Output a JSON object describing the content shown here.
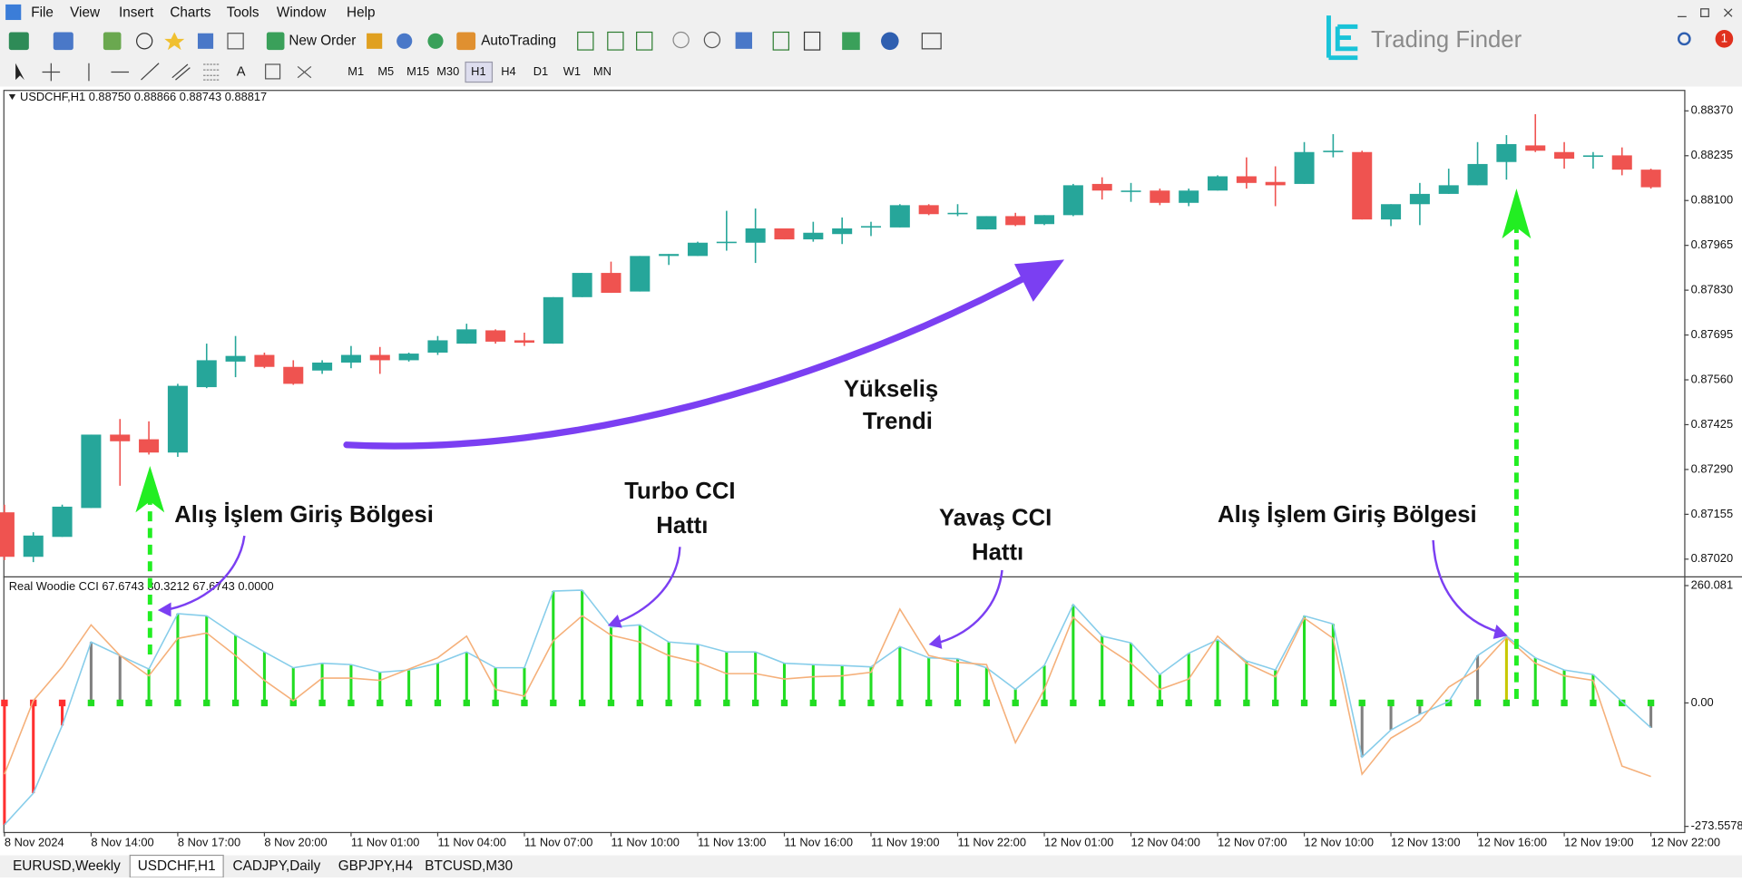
{
  "menu": [
    "File",
    "View",
    "Insert",
    "Charts",
    "Tools",
    "Window",
    "Help"
  ],
  "toolbar": {
    "new_order": "New Order",
    "autotrading": "AutoTrading",
    "timeframes": [
      "M1",
      "M5",
      "M15",
      "M30",
      "H1",
      "H4",
      "D1",
      "W1",
      "MN"
    ]
  },
  "logo": "Trading Finder",
  "notification_count": 1,
  "tabs": [
    "EURUSD,Weekly",
    "USDCHF,H1",
    "CADJPY,Daily",
    "GBPJPY,H4",
    "BTCUSD,M30"
  ],
  "annotations": [
    {
      "lines": [
        "Yükseliş",
        "Trendi"
      ]
    },
    {
      "lines": [
        "Turbo CCI",
        "Hattı"
      ]
    },
    {
      "lines": [
        "Yavaş CCI",
        "Hattı"
      ]
    },
    {
      "lines": [
        "Alış İşlem Giriş Bölgesi"
      ]
    },
    {
      "lines": [
        "Alış İşlem Giriş Bölgesi"
      ]
    }
  ],
  "chart_data": [
    {
      "type": "candlestick",
      "title": "USDCHF,H1 0.88750 0.88866 0.88743 0.88817",
      "up_color": "#26a69a",
      "down_color": "#ef5350",
      "open": [
        0.87161,
        0.87027,
        0.87087,
        0.87174,
        0.87395,
        0.87381,
        0.87341,
        0.87538,
        0.87615,
        0.87635,
        0.87599,
        0.87588,
        0.87612,
        0.87635,
        0.87619,
        0.87642,
        0.87669,
        0.87709,
        0.87679,
        0.87669,
        0.87809,
        0.87882,
        0.87826,
        0.87933,
        0.87933,
        0.87973,
        0.87973,
        0.88016,
        0.87983,
        0.87999,
        0.88019,
        0.88019,
        0.88086,
        0.88059,
        0.88013,
        0.88053,
        0.88029,
        0.88056,
        0.8815,
        0.8813,
        0.8813,
        0.88093,
        0.8813,
        0.88173,
        0.88156,
        0.8815,
        0.88246,
        0.88246,
        0.88043,
        0.88089,
        0.8812,
        0.88146,
        0.88216,
        0.88266,
        0.88246,
        0.88236,
        0.88236,
        0.88193
      ],
      "high": [
        0.87184,
        0.87101,
        0.87184,
        0.87395,
        0.87442,
        0.87435,
        0.87548,
        0.87669,
        0.87692,
        0.87642,
        0.87619,
        0.87619,
        0.87662,
        0.87659,
        0.87642,
        0.87692,
        0.87729,
        0.87712,
        0.87702,
        0.87809,
        0.87882,
        0.87916,
        0.87933,
        0.87939,
        0.87976,
        0.88069,
        0.88076,
        0.88016,
        0.88036,
        0.88049,
        0.88036,
        0.88089,
        0.88089,
        0.88089,
        0.88053,
        0.88063,
        0.88056,
        0.8815,
        0.8817,
        0.88153,
        0.88136,
        0.88136,
        0.88176,
        0.8823,
        0.88203,
        0.88276,
        0.883,
        0.8825,
        0.88089,
        0.88153,
        0.88196,
        0.88276,
        0.88297,
        0.8836,
        0.88276,
        0.88246,
        0.8826,
        0.88196
      ],
      "low": [
        0.87017,
        0.87011,
        0.87087,
        0.87174,
        0.87241,
        0.87335,
        0.87328,
        0.87535,
        0.87568,
        0.87595,
        0.87545,
        0.87578,
        0.87595,
        0.87578,
        0.87615,
        0.87635,
        0.87669,
        0.87669,
        0.87662,
        0.87669,
        0.87809,
        0.87822,
        0.87826,
        0.87906,
        0.87933,
        0.87949,
        0.87912,
        0.87983,
        0.87976,
        0.87969,
        0.87993,
        0.88019,
        0.88056,
        0.88053,
        0.88013,
        0.88023,
        0.88026,
        0.88053,
        0.88103,
        0.88096,
        0.88086,
        0.88083,
        0.8813,
        0.88136,
        0.88083,
        0.8815,
        0.8823,
        0.88043,
        0.88023,
        0.88026,
        0.8812,
        0.88146,
        0.88163,
        0.88246,
        0.88196,
        0.88196,
        0.88176,
        0.88136
      ],
      "close": [
        0.87027,
        0.87091,
        0.87178,
        0.87395,
        0.87375,
        0.87341,
        0.87542,
        0.87619,
        0.87632,
        0.87599,
        0.87548,
        0.87612,
        0.87635,
        0.87619,
        0.87639,
        0.87679,
        0.87712,
        0.87675,
        0.87672,
        0.87809,
        0.87882,
        0.87822,
        0.87933,
        0.87939,
        0.87973,
        0.87976,
        0.88016,
        0.87983,
        0.88003,
        0.88016,
        0.88023,
        0.88086,
        0.88059,
        0.88063,
        0.88053,
        0.88026,
        0.88056,
        0.88146,
        0.8813,
        0.8813,
        0.88093,
        0.8813,
        0.88173,
        0.88153,
        0.88146,
        0.88246,
        0.8825,
        0.88043,
        0.88089,
        0.8812,
        0.88146,
        0.8821,
        0.8827,
        0.8825,
        0.88226,
        0.88236,
        0.88193,
        0.8814
      ],
      "ylim": [
        0.8697,
        0.8843
      ],
      "yticks": [
        {
          "value": 0.8702,
          "label": "0.87020"
        },
        {
          "value": 0.87155,
          "label": "0.87155"
        },
        {
          "value": 0.8729,
          "label": "0.87290"
        },
        {
          "value": 0.87425,
          "label": "0.87425"
        },
        {
          "value": 0.8756,
          "label": "0.87560"
        },
        {
          "value": 0.87695,
          "label": "0.87695"
        },
        {
          "value": 0.8783,
          "label": "0.87830"
        },
        {
          "value": 0.87965,
          "label": "0.87965"
        },
        {
          "value": 0.881,
          "label": "0.88100"
        },
        {
          "value": 0.88235,
          "label": "0.88235"
        },
        {
          "value": 0.8837,
          "label": "0.88370"
        }
      ]
    },
    {
      "type": "line",
      "title": "Real Woodie CCI 67.6743 80.3212 67.6743 0.0000",
      "categories": [
        "8 Nov 2024",
        null,
        null,
        "8 Nov 14:00",
        null,
        null,
        "8 Nov 17:00",
        null,
        null,
        "8 Nov 20:00",
        null,
        null,
        "11 Nov 01:00",
        null,
        null,
        "11 Nov 04:00",
        null,
        null,
        "11 Nov 07:00",
        null,
        null,
        "11 Nov 10:00",
        null,
        null,
        "11 Nov 13:00",
        null,
        null,
        "11 Nov 16:00",
        null,
        null,
        "11 Nov 19:00",
        null,
        null,
        "11 Nov 22:00",
        null,
        null,
        "12 Nov 01:00",
        null,
        null,
        "12 Nov 04:00",
        null,
        null,
        "12 Nov 07:00",
        null,
        null,
        "12 Nov 10:00",
        null,
        null,
        "12 Nov 13:00",
        null,
        null,
        "12 Nov 16:00",
        null,
        null,
        "12 Nov 19:00",
        null,
        null,
        "12 Nov 22:00"
      ],
      "series": [
        {
          "color": "#87cdea",
          "values": [
            -270,
            -200,
            -50,
            135,
            105,
            75,
            198,
            193,
            150,
            113,
            78,
            88,
            85,
            68,
            73,
            88,
            113,
            78,
            78,
            248,
            250,
            168,
            173,
            135,
            130,
            113,
            113,
            88,
            85,
            83,
            80,
            125,
            100,
            98,
            78,
            30,
            83,
            218,
            148,
            133,
            63,
            110,
            140,
            93,
            73,
            193,
            175,
            -120,
            -60,
            -25,
            3,
            105,
            148,
            100,
            73,
            63,
            3,
            -55
          ]
        },
        {
          "color": "#f5b07a",
          "values": [
            -158,
            5,
            80,
            173,
            105,
            60,
            143,
            155,
            105,
            50,
            5,
            55,
            55,
            50,
            75,
            100,
            148,
            30,
            15,
            138,
            193,
            150,
            135,
            105,
            90,
            65,
            65,
            53,
            58,
            60,
            68,
            208,
            105,
            90,
            85,
            -88,
            30,
            190,
            130,
            88,
            30,
            53,
            148,
            88,
            58,
            188,
            143,
            -158,
            -78,
            -40,
            35,
            75,
            145,
            88,
            60,
            50,
            -140,
            -163
          ]
        }
      ],
      "histogram_colors": [
        "#ff3030",
        "#ff3030",
        "#ff3030",
        "#808080",
        "#808080",
        "#22dd22",
        "#22dd22",
        "#22dd22",
        "#22dd22",
        "#22dd22",
        "#22dd22",
        "#22dd22",
        "#22dd22",
        "#22dd22",
        "#22dd22",
        "#22dd22",
        "#22dd22",
        "#22dd22",
        "#22dd22",
        "#22dd22",
        "#22dd22",
        "#22dd22",
        "#22dd22",
        "#22dd22",
        "#22dd22",
        "#22dd22",
        "#22dd22",
        "#22dd22",
        "#22dd22",
        "#22dd22",
        "#22dd22",
        "#22dd22",
        "#22dd22",
        "#22dd22",
        "#22dd22",
        "#22dd22",
        "#22dd22",
        "#22dd22",
        "#22dd22",
        "#22dd22",
        "#22dd22",
        "#22dd22",
        "#22dd22",
        "#22dd22",
        "#22dd22",
        "#22dd22",
        "#22dd22",
        "#808080",
        "#808080",
        "#808080",
        "#808080",
        "#808080",
        "#c8c800",
        "#22dd22",
        "#22dd22",
        "#22dd22",
        "#22dd22",
        "#808080"
      ],
      "ylim": [
        -286,
        277
      ],
      "yticks": [
        260.081,
        {
          "value": 0,
          "label": "0.00"
        },
        -273.5578
      ]
    }
  ]
}
